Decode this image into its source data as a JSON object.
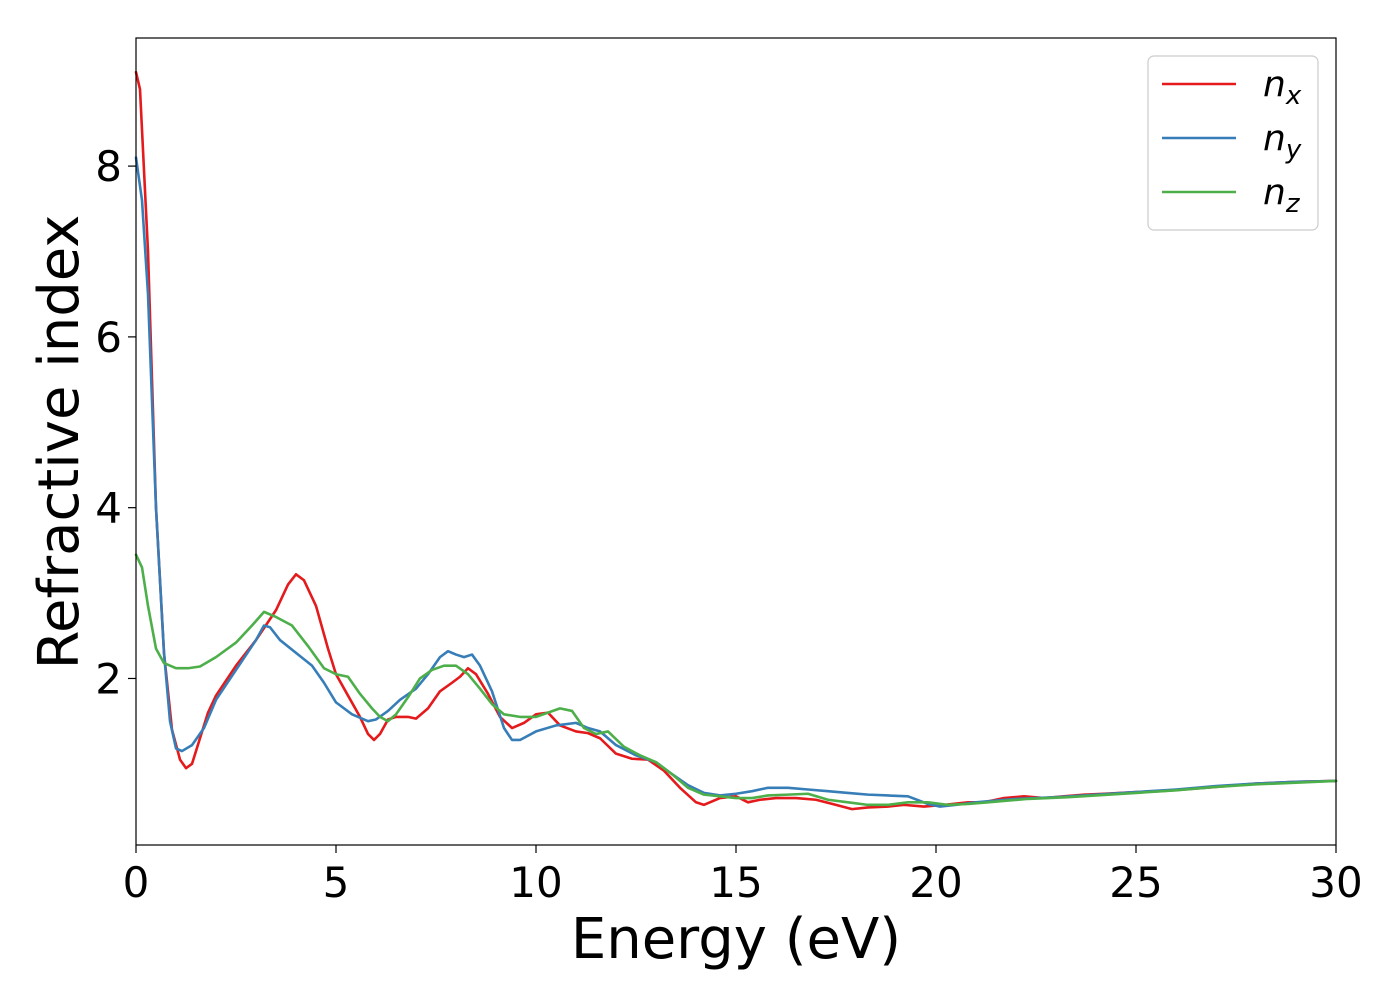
{
  "chart_data": {
    "type": "line",
    "title": "",
    "xlabel": "Energy (eV)",
    "ylabel": "Refractive index",
    "xlim": [
      0,
      30
    ],
    "ylim": [
      0.05,
      9.5
    ],
    "x_ticks": [
      0,
      5,
      10,
      15,
      20,
      25,
      30
    ],
    "x_tick_labels": [
      "0",
      "5",
      "10",
      "15",
      "20",
      "25",
      "30"
    ],
    "y_ticks": [
      2,
      4,
      6,
      8
    ],
    "y_tick_labels": [
      "2",
      "4",
      "6",
      "8"
    ],
    "grid": false,
    "legend_position": "top-right",
    "series": [
      {
        "name": "n_x",
        "label_base": "n",
        "label_sub": "x",
        "color": "#e41a1c",
        "points": [
          [
            0,
            9.1
          ],
          [
            0.1,
            8.9
          ],
          [
            0.3,
            7.0
          ],
          [
            0.5,
            4.0
          ],
          [
            0.7,
            2.3
          ],
          [
            0.9,
            1.4
          ],
          [
            1.1,
            1.05
          ],
          [
            1.25,
            0.95
          ],
          [
            1.4,
            1.0
          ],
          [
            1.6,
            1.3
          ],
          [
            1.8,
            1.6
          ],
          [
            2.0,
            1.8
          ],
          [
            2.5,
            2.15
          ],
          [
            3.0,
            2.45
          ],
          [
            3.5,
            2.8
          ],
          [
            3.8,
            3.1
          ],
          [
            4.0,
            3.22
          ],
          [
            4.2,
            3.15
          ],
          [
            4.5,
            2.85
          ],
          [
            4.8,
            2.35
          ],
          [
            5.0,
            2.05
          ],
          [
            5.3,
            1.8
          ],
          [
            5.6,
            1.55
          ],
          [
            5.8,
            1.35
          ],
          [
            5.95,
            1.28
          ],
          [
            6.1,
            1.35
          ],
          [
            6.3,
            1.52
          ],
          [
            6.5,
            1.55
          ],
          [
            6.8,
            1.55
          ],
          [
            7.0,
            1.53
          ],
          [
            7.3,
            1.65
          ],
          [
            7.6,
            1.85
          ],
          [
            7.9,
            1.95
          ],
          [
            8.1,
            2.02
          ],
          [
            8.3,
            2.12
          ],
          [
            8.5,
            2.05
          ],
          [
            8.8,
            1.82
          ],
          [
            9.1,
            1.55
          ],
          [
            9.4,
            1.42
          ],
          [
            9.7,
            1.48
          ],
          [
            10.0,
            1.58
          ],
          [
            10.3,
            1.6
          ],
          [
            10.6,
            1.45
          ],
          [
            11.0,
            1.38
          ],
          [
            11.3,
            1.36
          ],
          [
            11.6,
            1.3
          ],
          [
            12.0,
            1.12
          ],
          [
            12.4,
            1.06
          ],
          [
            12.8,
            1.05
          ],
          [
            13.2,
            0.92
          ],
          [
            13.6,
            0.72
          ],
          [
            14.0,
            0.55
          ],
          [
            14.2,
            0.52
          ],
          [
            14.6,
            0.6
          ],
          [
            15.0,
            0.62
          ],
          [
            15.3,
            0.55
          ],
          [
            15.6,
            0.58
          ],
          [
            16.0,
            0.6
          ],
          [
            16.5,
            0.6
          ],
          [
            17.0,
            0.58
          ],
          [
            17.5,
            0.52
          ],
          [
            17.9,
            0.47
          ],
          [
            18.3,
            0.49
          ],
          [
            18.8,
            0.5
          ],
          [
            19.2,
            0.52
          ],
          [
            19.7,
            0.5
          ],
          [
            20.2,
            0.52
          ],
          [
            20.8,
            0.55
          ],
          [
            21.2,
            0.55
          ],
          [
            21.7,
            0.6
          ],
          [
            22.2,
            0.62
          ],
          [
            22.7,
            0.6
          ],
          [
            23.2,
            0.62
          ],
          [
            23.7,
            0.64
          ],
          [
            24.2,
            0.65
          ],
          [
            25.0,
            0.67
          ],
          [
            25.6,
            0.68
          ],
          [
            26.2,
            0.7
          ],
          [
            27.0,
            0.73
          ],
          [
            28.0,
            0.77
          ],
          [
            29.0,
            0.79
          ],
          [
            30.0,
            0.8
          ]
        ]
      },
      {
        "name": "n_y",
        "label_base": "n",
        "label_sub": "y",
        "color": "#377eb8",
        "points": [
          [
            0,
            8.1
          ],
          [
            0.15,
            7.6
          ],
          [
            0.3,
            6.5
          ],
          [
            0.5,
            4.0
          ],
          [
            0.7,
            2.3
          ],
          [
            0.85,
            1.5
          ],
          [
            1.0,
            1.18
          ],
          [
            1.15,
            1.15
          ],
          [
            1.4,
            1.22
          ],
          [
            1.7,
            1.42
          ],
          [
            2.0,
            1.75
          ],
          [
            2.5,
            2.1
          ],
          [
            3.0,
            2.45
          ],
          [
            3.2,
            2.62
          ],
          [
            3.35,
            2.6
          ],
          [
            3.6,
            2.45
          ],
          [
            4.0,
            2.3
          ],
          [
            4.4,
            2.15
          ],
          [
            4.7,
            1.95
          ],
          [
            5.0,
            1.72
          ],
          [
            5.4,
            1.58
          ],
          [
            5.8,
            1.5
          ],
          [
            6.0,
            1.52
          ],
          [
            6.3,
            1.62
          ],
          [
            6.6,
            1.75
          ],
          [
            7.0,
            1.88
          ],
          [
            7.3,
            2.05
          ],
          [
            7.6,
            2.25
          ],
          [
            7.8,
            2.32
          ],
          [
            8.0,
            2.28
          ],
          [
            8.2,
            2.25
          ],
          [
            8.4,
            2.28
          ],
          [
            8.6,
            2.15
          ],
          [
            8.9,
            1.85
          ],
          [
            9.2,
            1.42
          ],
          [
            9.4,
            1.28
          ],
          [
            9.6,
            1.28
          ],
          [
            10.0,
            1.38
          ],
          [
            10.5,
            1.45
          ],
          [
            11.0,
            1.48
          ],
          [
            11.3,
            1.42
          ],
          [
            11.6,
            1.38
          ],
          [
            12.0,
            1.22
          ],
          [
            12.5,
            1.1
          ],
          [
            13.0,
            1.02
          ],
          [
            13.4,
            0.88
          ],
          [
            13.8,
            0.75
          ],
          [
            14.2,
            0.66
          ],
          [
            14.6,
            0.63
          ],
          [
            15.0,
            0.65
          ],
          [
            15.4,
            0.68
          ],
          [
            15.8,
            0.72
          ],
          [
            16.3,
            0.72
          ],
          [
            16.8,
            0.7
          ],
          [
            17.3,
            0.68
          ],
          [
            17.8,
            0.66
          ],
          [
            18.3,
            0.64
          ],
          [
            18.8,
            0.63
          ],
          [
            19.3,
            0.62
          ],
          [
            19.8,
            0.53
          ],
          [
            20.1,
            0.5
          ],
          [
            20.5,
            0.52
          ],
          [
            21.0,
            0.55
          ],
          [
            21.5,
            0.57
          ],
          [
            22.0,
            0.59
          ],
          [
            22.5,
            0.6
          ],
          [
            23.0,
            0.61
          ],
          [
            24.0,
            0.64
          ],
          [
            25.0,
            0.67
          ],
          [
            26.0,
            0.7
          ],
          [
            27.0,
            0.74
          ],
          [
            28.0,
            0.77
          ],
          [
            29.0,
            0.79
          ],
          [
            30.0,
            0.8
          ]
        ]
      },
      {
        "name": "n_z",
        "label_base": "n",
        "label_sub": "z",
        "color": "#4daf4a",
        "points": [
          [
            0,
            3.45
          ],
          [
            0.15,
            3.3
          ],
          [
            0.3,
            2.85
          ],
          [
            0.5,
            2.35
          ],
          [
            0.7,
            2.18
          ],
          [
            1.0,
            2.12
          ],
          [
            1.3,
            2.12
          ],
          [
            1.6,
            2.14
          ],
          [
            2.0,
            2.25
          ],
          [
            2.5,
            2.42
          ],
          [
            2.9,
            2.62
          ],
          [
            3.2,
            2.78
          ],
          [
            3.5,
            2.72
          ],
          [
            3.9,
            2.62
          ],
          [
            4.3,
            2.38
          ],
          [
            4.7,
            2.12
          ],
          [
            5.0,
            2.05
          ],
          [
            5.3,
            2.02
          ],
          [
            5.6,
            1.82
          ],
          [
            5.9,
            1.65
          ],
          [
            6.1,
            1.55
          ],
          [
            6.3,
            1.5
          ],
          [
            6.5,
            1.58
          ],
          [
            6.8,
            1.78
          ],
          [
            7.1,
            2.0
          ],
          [
            7.4,
            2.1
          ],
          [
            7.7,
            2.15
          ],
          [
            8.0,
            2.15
          ],
          [
            8.3,
            2.05
          ],
          [
            8.6,
            1.88
          ],
          [
            8.9,
            1.7
          ],
          [
            9.2,
            1.58
          ],
          [
            9.6,
            1.55
          ],
          [
            10.0,
            1.55
          ],
          [
            10.3,
            1.6
          ],
          [
            10.6,
            1.65
          ],
          [
            10.9,
            1.62
          ],
          [
            11.2,
            1.42
          ],
          [
            11.5,
            1.35
          ],
          [
            11.8,
            1.38
          ],
          [
            12.2,
            1.2
          ],
          [
            12.6,
            1.1
          ],
          [
            13.0,
            1.02
          ],
          [
            13.4,
            0.88
          ],
          [
            13.8,
            0.72
          ],
          [
            14.2,
            0.64
          ],
          [
            14.6,
            0.62
          ],
          [
            15.0,
            0.6
          ],
          [
            15.4,
            0.6
          ],
          [
            15.8,
            0.63
          ],
          [
            16.3,
            0.64
          ],
          [
            16.8,
            0.65
          ],
          [
            17.3,
            0.58
          ],
          [
            17.8,
            0.55
          ],
          [
            18.3,
            0.52
          ],
          [
            18.8,
            0.52
          ],
          [
            19.3,
            0.55
          ],
          [
            19.8,
            0.55
          ],
          [
            20.3,
            0.52
          ],
          [
            20.8,
            0.53
          ],
          [
            21.3,
            0.55
          ],
          [
            21.8,
            0.57
          ],
          [
            22.3,
            0.59
          ],
          [
            22.8,
            0.6
          ],
          [
            23.3,
            0.61
          ],
          [
            24.0,
            0.63
          ],
          [
            25.0,
            0.66
          ],
          [
            26.0,
            0.69
          ],
          [
            27.0,
            0.73
          ],
          [
            28.0,
            0.76
          ],
          [
            29.0,
            0.78
          ],
          [
            30.0,
            0.8
          ]
        ]
      }
    ]
  }
}
